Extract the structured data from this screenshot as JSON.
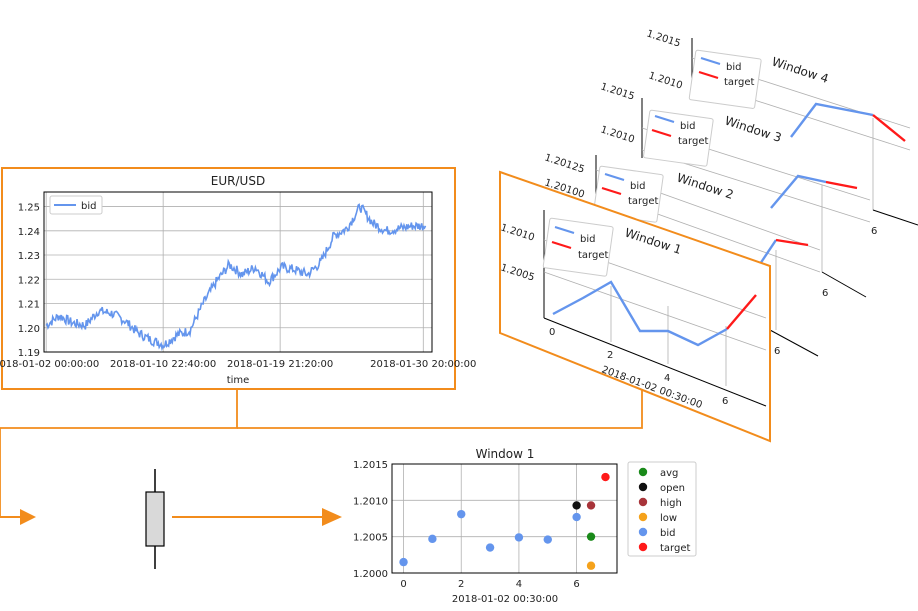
{
  "colors": {
    "orange": "#f28c1c",
    "bid": "#6495ed",
    "target": "#ff1a1a",
    "avg": "#1a8a1a",
    "open": "#111111",
    "high": "#a8343a",
    "low": "#f5a21b"
  },
  "icons": {
    "candlestick": "candlestick-icon",
    "arrow": "arrow-right-icon"
  },
  "main_chart": {
    "title": "EUR/USD",
    "xlabel": "time",
    "legend": "bid",
    "x_ticks": [
      "2018-01-02 00:00:00",
      "2018-01-10 22:40:00",
      "2018-01-19 21:20:00",
      "2018-01-30 20:00:00"
    ],
    "y_ticks": [
      "1.19",
      "1.20",
      "1.21",
      "1.22",
      "1.23",
      "1.24",
      "1.25"
    ]
  },
  "windows": [
    {
      "title": "Window 1",
      "legend": [
        "bid",
        "target"
      ],
      "y_ticks": [
        "1.2005",
        "1.2010"
      ],
      "x_ticks": [
        "0",
        "2",
        "4",
        "6"
      ],
      "xlabel": "2018-01-02 00:30:00"
    },
    {
      "title": "Window 2",
      "y_ticks": [
        "1.20100",
        "1.20125"
      ],
      "x_ticks": [
        "6"
      ]
    },
    {
      "title": "Window 3",
      "y_ticks": [
        "1.2010",
        "1.2015"
      ],
      "x_ticks": [
        "6"
      ]
    },
    {
      "title": "Window 4",
      "y_ticks": [
        "1.2010",
        "1.2015"
      ],
      "x_ticks": [
        "6"
      ]
    }
  ],
  "chart_data": [
    {
      "type": "line",
      "title": "EUR/USD",
      "xlabel": "time",
      "ylabel": "",
      "ylim": [
        1.19,
        1.256
      ],
      "series": [
        {
          "name": "bid",
          "x": [
            "2018-01-02",
            "2018-01-03",
            "2018-01-04",
            "2018-01-05",
            "2018-01-06",
            "2018-01-07",
            "2018-01-08",
            "2018-01-09",
            "2018-01-10",
            "2018-01-11",
            "2018-01-12",
            "2018-01-13",
            "2018-01-14",
            "2018-01-15",
            "2018-01-16",
            "2018-01-17",
            "2018-01-18",
            "2018-01-19",
            "2018-01-20",
            "2018-01-21",
            "2018-01-22",
            "2018-01-23",
            "2018-01-24",
            "2018-01-25",
            "2018-01-26",
            "2018-01-27",
            "2018-01-28",
            "2018-01-29",
            "2018-01-30",
            "2018-01-31"
          ],
          "values": [
            1.201,
            1.205,
            1.202,
            1.201,
            1.207,
            1.206,
            1.203,
            1.198,
            1.195,
            1.193,
            1.197,
            1.199,
            1.21,
            1.219,
            1.226,
            1.222,
            1.225,
            1.219,
            1.225,
            1.224,
            1.222,
            1.227,
            1.238,
            1.241,
            1.25,
            1.243,
            1.24,
            1.241,
            1.242,
            1.242
          ]
        }
      ]
    },
    {
      "type": "line",
      "title": "Window 1",
      "xlabel": "2018-01-02 00:30:00",
      "series": [
        {
          "name": "bid",
          "x": [
            0,
            1,
            2,
            3,
            4,
            5,
            6
          ],
          "values": [
            1.20015,
            1.20045,
            1.20082,
            1.20035,
            1.20048,
            1.20045,
            1.20078
          ]
        },
        {
          "name": "target",
          "x": [
            6,
            7
          ],
          "values": [
            1.20078,
            1.20132
          ]
        }
      ]
    },
    {
      "type": "scatter",
      "title": "Window 1",
      "xlabel": "2018-01-02 00:30:00",
      "ylim": [
        1.2,
        1.2015
      ],
      "x_ticks": [
        "0",
        "2",
        "4",
        "6"
      ],
      "y_ticks": [
        "1.2000",
        "1.2005",
        "1.2010",
        "1.2015"
      ],
      "legend_placement": "right",
      "series": [
        {
          "name": "avg",
          "x": [
            6.5
          ],
          "values": [
            1.2005
          ]
        },
        {
          "name": "open",
          "x": [
            6
          ],
          "values": [
            1.20093
          ]
        },
        {
          "name": "high",
          "x": [
            6.5
          ],
          "values": [
            1.20093
          ]
        },
        {
          "name": "low",
          "x": [
            6.5
          ],
          "values": [
            1.2001
          ]
        },
        {
          "name": "bid",
          "x": [
            0,
            1,
            2,
            3,
            4,
            5,
            6
          ],
          "values": [
            1.20015,
            1.20047,
            1.20081,
            1.20035,
            1.20049,
            1.20046,
            1.20077
          ]
        },
        {
          "name": "target",
          "x": [
            7
          ],
          "values": [
            1.20132
          ]
        }
      ]
    }
  ]
}
